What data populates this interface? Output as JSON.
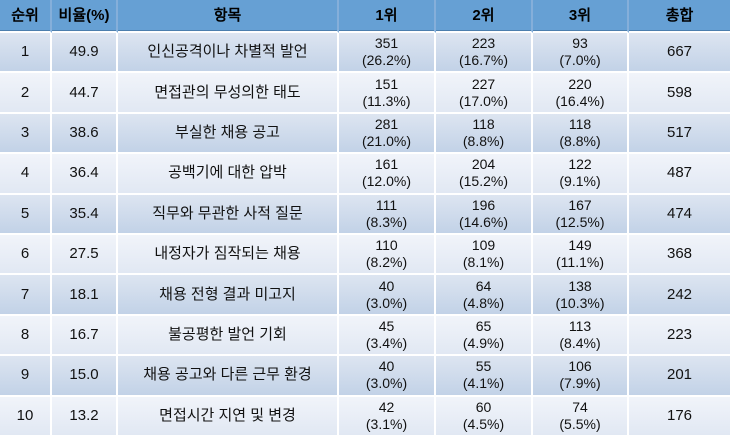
{
  "colors": {
    "header_blue": "#66a0d4",
    "band_odd_top": "#dde5f1",
    "band_odd_bottom": "#c2d2e7",
    "band_even_top": "#f1f4fa",
    "band_even_bottom": "#e1e8f3",
    "grid_line": "#ffffff",
    "text": "#111111"
  },
  "chart_data": {
    "type": "table",
    "columns": [
      "순위",
      "비율(%)",
      "항목",
      "1위",
      "2위",
      "3위",
      "총합"
    ],
    "rows": [
      {
        "rank": "1",
        "ratio": "49.9",
        "item": "인신공격이나 차별적 발언",
        "first": {
          "n": "351",
          "pct": "(26.2%)"
        },
        "second": {
          "n": "223",
          "pct": "(16.7%)"
        },
        "third": {
          "n": "93",
          "pct": "(7.0%)"
        },
        "total": "667"
      },
      {
        "rank": "2",
        "ratio": "44.7",
        "item": "면접관의 무성의한 태도",
        "first": {
          "n": "151",
          "pct": "(11.3%)"
        },
        "second": {
          "n": "227",
          "pct": "(17.0%)"
        },
        "third": {
          "n": "220",
          "pct": "(16.4%)"
        },
        "total": "598"
      },
      {
        "rank": "3",
        "ratio": "38.6",
        "item": "부실한 채용 공고",
        "first": {
          "n": "281",
          "pct": "(21.0%)"
        },
        "second": {
          "n": "118",
          "pct": "(8.8%)"
        },
        "third": {
          "n": "118",
          "pct": "(8.8%)"
        },
        "total": "517"
      },
      {
        "rank": "4",
        "ratio": "36.4",
        "item": "공백기에 대한 압박",
        "first": {
          "n": "161",
          "pct": "(12.0%)"
        },
        "second": {
          "n": "204",
          "pct": "(15.2%)"
        },
        "third": {
          "n": "122",
          "pct": "(9.1%)"
        },
        "total": "487"
      },
      {
        "rank": "5",
        "ratio": "35.4",
        "item": "직무와 무관한 사적 질문",
        "first": {
          "n": "111",
          "pct": "(8.3%)"
        },
        "second": {
          "n": "196",
          "pct": "(14.6%)"
        },
        "third": {
          "n": "167",
          "pct": "(12.5%)"
        },
        "total": "474"
      },
      {
        "rank": "6",
        "ratio": "27.5",
        "item": "내정자가 짐작되는 채용",
        "first": {
          "n": "110",
          "pct": "(8.2%)"
        },
        "second": {
          "n": "109",
          "pct": "(8.1%)"
        },
        "third": {
          "n": "149",
          "pct": "(11.1%)"
        },
        "total": "368"
      },
      {
        "rank": "7",
        "ratio": "18.1",
        "item": "채용 전형 결과 미고지",
        "first": {
          "n": "40",
          "pct": "(3.0%)"
        },
        "second": {
          "n": "64",
          "pct": "(4.8%)"
        },
        "third": {
          "n": "138",
          "pct": "(10.3%)"
        },
        "total": "242"
      },
      {
        "rank": "8",
        "ratio": "16.7",
        "item": "불공평한 발언 기회",
        "first": {
          "n": "45",
          "pct": "(3.4%)"
        },
        "second": {
          "n": "65",
          "pct": "(4.9%)"
        },
        "third": {
          "n": "113",
          "pct": "(8.4%)"
        },
        "total": "223"
      },
      {
        "rank": "9",
        "ratio": "15.0",
        "item": "채용 공고와 다른 근무 환경",
        "first": {
          "n": "40",
          "pct": "(3.0%)"
        },
        "second": {
          "n": "55",
          "pct": "(4.1%)"
        },
        "third": {
          "n": "106",
          "pct": "(7.9%)"
        },
        "total": "201"
      },
      {
        "rank": "10",
        "ratio": "13.2",
        "item": "면접시간 지연 및 변경",
        "first": {
          "n": "42",
          "pct": "(3.1%)"
        },
        "second": {
          "n": "60",
          "pct": "(4.5%)"
        },
        "third": {
          "n": "74",
          "pct": "(5.5%)"
        },
        "total": "176"
      }
    ]
  }
}
